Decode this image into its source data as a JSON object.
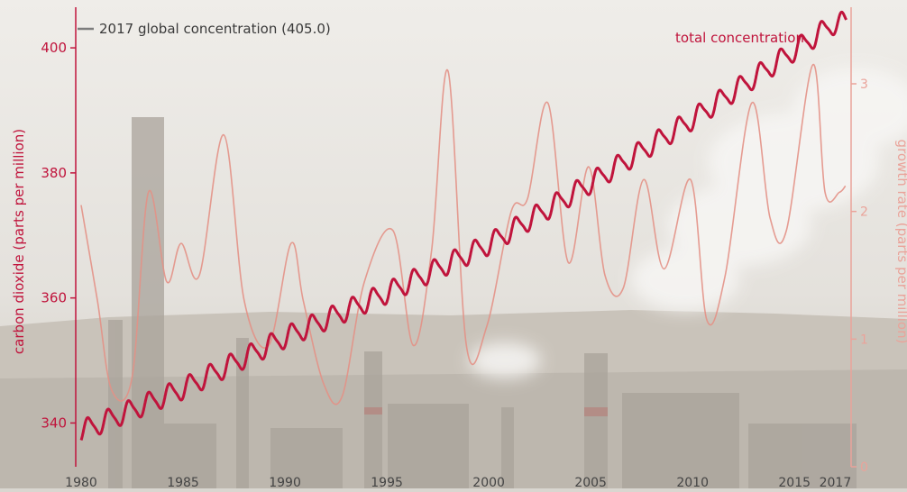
{
  "chart_data": {
    "type": "line",
    "title": "",
    "x_ticks": [
      "1980",
      "1985",
      "1990",
      "1995",
      "2000",
      "2005",
      "2010",
      "2015",
      "2017"
    ],
    "xlim": [
      1980,
      2017.6
    ],
    "left_axis": {
      "label": "carbon dioxide (parts per million)",
      "ticks": [
        340,
        360,
        380,
        400
      ],
      "lim": [
        333,
        406.5
      ]
    },
    "right_axis": {
      "label": "growth rate (parts per million)",
      "ticks": [
        0,
        1,
        2,
        3
      ],
      "lim": [
        0,
        3.6
      ]
    },
    "reference_label": "2017 global concentration (405.0)",
    "reference_value": 405.0,
    "series": [
      {
        "name": "total concentration",
        "axis": "left",
        "trend": {
          "x": [
            1980,
            1985,
            1990,
            1995,
            2000,
            2005,
            2010,
            2015,
            2017
          ],
          "y": [
            338.7,
            345.5,
            353.7,
            360.8,
            368.6,
            378.4,
            388.6,
            399.6,
            404.0
          ]
        },
        "seasonal_amplitude": 1.6
      },
      {
        "name": "",
        "axis": "right",
        "x": [
          1980,
          1980.8,
          1981.5,
          1982.5,
          1983.3,
          1984.2,
          1984.9,
          1985.8,
          1987.0,
          1988.0,
          1989.2,
          1990.3,
          1990.9,
          1991.9,
          1992.8,
          1993.9,
          1995.3,
          1996.3,
          1997.2,
          1998.0,
          1998.9,
          1999.9,
          2001.1,
          2001.9,
          2002.9,
          2003.9,
          2004.9,
          2005.7,
          2006.6,
          2007.6,
          2008.6,
          2009.9,
          2010.7,
          2011.6,
          2012.9,
          2013.8,
          2014.6,
          2015.9,
          2016.5,
          2017.2,
          2017.5
        ],
        "y": [
          2.05,
          1.3,
          0.6,
          0.7,
          2.15,
          1.45,
          1.75,
          1.5,
          2.6,
          1.3,
          0.95,
          1.75,
          1.3,
          0.65,
          0.55,
          1.45,
          1.85,
          0.95,
          1.7,
          3.1,
          0.95,
          1.1,
          2.0,
          2.1,
          2.85,
          1.6,
          2.35,
          1.5,
          1.4,
          2.25,
          1.55,
          2.25,
          1.15,
          1.5,
          2.85,
          1.95,
          1.85,
          3.15,
          2.15,
          2.15,
          2.2
        ]
      }
    ],
    "colors": {
      "total": "#c0143c",
      "growth": "#e39186",
      "axis_left": "#c0143c",
      "axis_right": "#eaa39a",
      "reference": "#7d7d7d",
      "tick_text": "#444444"
    }
  }
}
